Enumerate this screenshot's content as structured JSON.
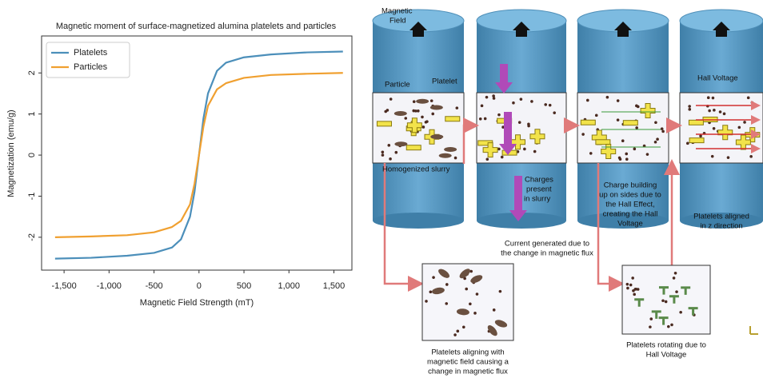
{
  "chart_data": {
    "type": "line",
    "title": "Magnetic moment of surface-magnetized alumina platelets and particles",
    "x_label": "Magnetic Field Strength (mT)",
    "y_label": "Magnetization (emu/g)",
    "x": [
      -1600,
      -1200,
      -800,
      -500,
      -300,
      -200,
      -100,
      -50,
      0,
      50,
      100,
      200,
      300,
      500,
      800,
      1200,
      1600
    ],
    "series": [
      {
        "name": "Platelets",
        "color": "#4c8fba",
        "values": [
          -2.52,
          -2.5,
          -2.45,
          -2.38,
          -2.25,
          -2.05,
          -1.5,
          -0.9,
          0,
          0.9,
          1.5,
          2.05,
          2.25,
          2.38,
          2.45,
          2.5,
          2.52
        ]
      },
      {
        "name": "Particles",
        "color": "#f0a030",
        "values": [
          -2.0,
          -1.98,
          -1.95,
          -1.88,
          -1.75,
          -1.6,
          -1.2,
          -0.7,
          0,
          0.7,
          1.2,
          1.6,
          1.75,
          1.88,
          1.95,
          1.98,
          2.0
        ]
      }
    ],
    "xlim": [
      -1750,
      1700
    ],
    "xticks": [
      {
        "value": -1500,
        "label": "-1,500"
      },
      {
        "value": -1000,
        "label": "-1,000"
      },
      -500,
      0,
      500,
      {
        "value": 1000,
        "label": "1,000"
      },
      {
        "value": 1500,
        "label": "1,500"
      }
    ],
    "ylim": [
      -2.8,
      2.9
    ],
    "yticks": [
      -2,
      -1,
      0,
      1,
      2
    ],
    "grid": false,
    "legend": "upper-left"
  },
  "diagram": {
    "magnetic_field": [
      "Magnetic",
      "Field"
    ],
    "particle": "Particle",
    "platelet": "Platelet",
    "homogenized_slurry": "Homogenized slurry",
    "charges_present": [
      "Charges",
      "present",
      "in slurry"
    ],
    "current_generated": [
      "Current generated due to",
      "the change in magnetic flux"
    ],
    "charge_building": [
      "Charge building",
      "up on sides due to",
      "the Hall Effect,",
      "creating the Hall",
      "Voltage"
    ],
    "hall_voltage": "Hall Voltage",
    "platelets_aligned": [
      "Platelets aligned",
      "in z direction"
    ],
    "platelets_aligning": [
      "Platelets aligning with",
      "magnetic field causing a",
      "change in magnetic flux"
    ],
    "platelets_rotating": [
      "Platelets rotating due to",
      "Hall Voltage"
    ]
  }
}
